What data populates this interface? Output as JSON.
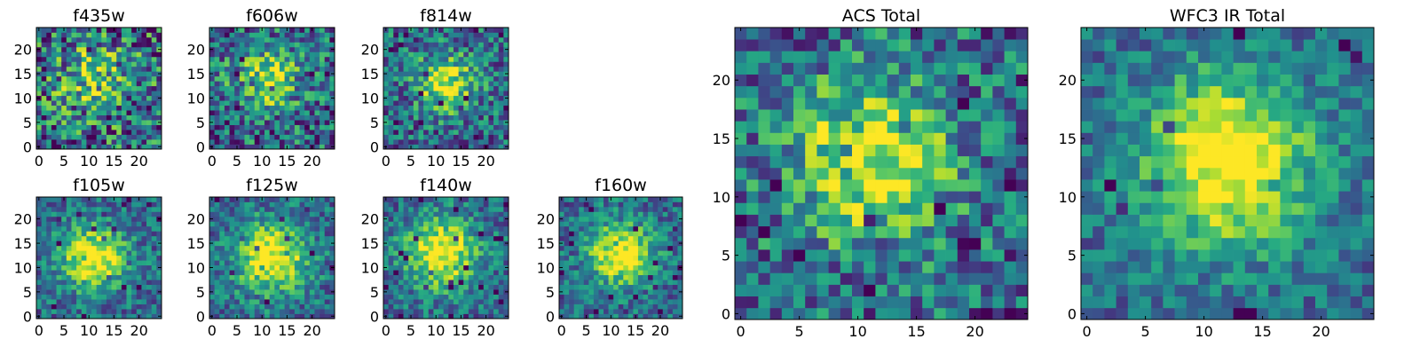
{
  "chart_data": [
    {
      "type": "heatmap",
      "title": "f435w",
      "grid_size": 25,
      "xticks": [
        0,
        5,
        10,
        15,
        20
      ],
      "yticks": [
        0,
        5,
        10,
        15,
        20
      ],
      "xlim": [
        0,
        25
      ],
      "ylim": [
        0,
        25
      ],
      "colormap": "viridis",
      "peak": [
        11,
        14
      ],
      "spread": 5.5,
      "signal": 0.35,
      "noise": 0.55,
      "seed": 11
    },
    {
      "type": "heatmap",
      "title": "f606w",
      "grid_size": 25,
      "xticks": [
        0,
        5,
        10,
        15,
        20
      ],
      "yticks": [
        0,
        5,
        10,
        15,
        20
      ],
      "xlim": [
        0,
        25
      ],
      "ylim": [
        0,
        25
      ],
      "colormap": "viridis",
      "peak": [
        11,
        14
      ],
      "spread": 4.5,
      "signal": 0.5,
      "noise": 0.45,
      "seed": 23
    },
    {
      "type": "heatmap",
      "title": "f814w",
      "grid_size": 25,
      "xticks": [
        0,
        5,
        10,
        15,
        20
      ],
      "yticks": [
        0,
        5,
        10,
        15,
        20
      ],
      "xlim": [
        0,
        25
      ],
      "ylim": [
        0,
        25
      ],
      "colormap": "viridis",
      "peak": [
        12,
        13
      ],
      "spread": 4.0,
      "signal": 0.6,
      "noise": 0.4,
      "seed": 37
    },
    {
      "type": "heatmap",
      "title": "f105w",
      "grid_size": 25,
      "xticks": [
        0,
        5,
        10,
        15,
        20
      ],
      "yticks": [
        0,
        5,
        10,
        15,
        20
      ],
      "xlim": [
        0,
        25
      ],
      "ylim": [
        0,
        25
      ],
      "colormap": "viridis",
      "peak": [
        11,
        12
      ],
      "spread": 4.5,
      "signal": 0.7,
      "noise": 0.3,
      "seed": 41
    },
    {
      "type": "heatmap",
      "title": "f125w",
      "grid_size": 25,
      "xticks": [
        0,
        5,
        10,
        15,
        20
      ],
      "yticks": [
        0,
        5,
        10,
        15,
        20
      ],
      "xlim": [
        0,
        25
      ],
      "ylim": [
        0,
        25
      ],
      "colormap": "viridis",
      "peak": [
        12,
        12
      ],
      "spread": 5.0,
      "signal": 0.7,
      "noise": 0.3,
      "seed": 53
    },
    {
      "type": "heatmap",
      "title": "f140w",
      "grid_size": 25,
      "xticks": [
        0,
        5,
        10,
        15,
        20
      ],
      "yticks": [
        0,
        5,
        10,
        15,
        20
      ],
      "xlim": [
        0,
        25
      ],
      "ylim": [
        0,
        25
      ],
      "colormap": "viridis",
      "peak": [
        11,
        13
      ],
      "spread": 5.0,
      "signal": 0.7,
      "noise": 0.3,
      "seed": 67
    },
    {
      "type": "heatmap",
      "title": "f160w",
      "grid_size": 25,
      "xticks": [
        0,
        5,
        10,
        15,
        20
      ],
      "yticks": [
        0,
        5,
        10,
        15,
        20
      ],
      "xlim": [
        0,
        25
      ],
      "ylim": [
        0,
        25
      ],
      "colormap": "viridis",
      "peak": [
        12,
        13
      ],
      "spread": 4.5,
      "signal": 0.7,
      "noise": 0.3,
      "seed": 71
    },
    {
      "type": "heatmap",
      "title": "ACS Total",
      "grid_size": 25,
      "xticks": [
        0,
        5,
        10,
        15,
        20
      ],
      "yticks": [
        0,
        5,
        10,
        15,
        20
      ],
      "xlim": [
        0,
        25
      ],
      "ylim": [
        0,
        25
      ],
      "colormap": "viridis",
      "peak": [
        11,
        13
      ],
      "spread": 4.8,
      "signal": 0.6,
      "noise": 0.4,
      "seed": 83
    },
    {
      "type": "heatmap",
      "title": "WFC3 IR Total",
      "grid_size": 25,
      "xticks": [
        0,
        5,
        10,
        15,
        20
      ],
      "yticks": [
        0,
        5,
        10,
        15,
        20
      ],
      "xlim": [
        0,
        25
      ],
      "ylim": [
        0,
        25
      ],
      "colormap": "viridis",
      "peak": [
        12,
        13
      ],
      "spread": 5.0,
      "signal": 0.75,
      "noise": 0.25,
      "seed": 97
    }
  ]
}
